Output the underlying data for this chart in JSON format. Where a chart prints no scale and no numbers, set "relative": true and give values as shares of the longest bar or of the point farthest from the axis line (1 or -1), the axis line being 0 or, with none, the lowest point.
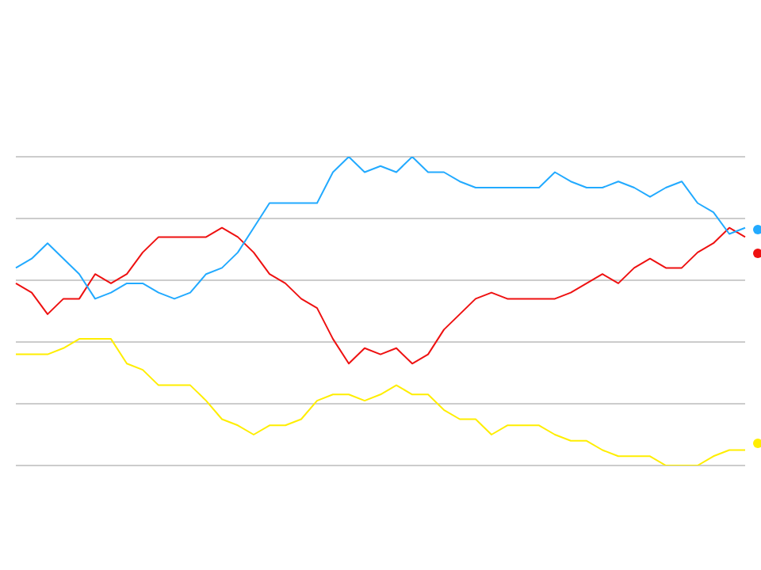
{
  "chart_data": {
    "type": "line",
    "relative": true,
    "grid": "y",
    "legend": false,
    "marker": "none",
    "line_style": "solid",
    "categories": [
      null,
      null,
      null,
      null,
      null,
      null,
      null,
      null,
      null,
      null,
      null,
      null,
      null,
      null,
      null,
      null,
      null,
      null,
      null,
      null,
      null,
      null,
      null,
      null,
      null,
      null,
      null,
      null,
      null,
      null,
      null,
      null,
      null,
      null,
      null,
      null,
      null,
      null,
      null,
      null,
      null,
      null,
      null,
      null,
      null,
      null,
      null
    ],
    "series": [
      {
        "color": "#22aaff",
        "values": [
          0.64,
          0.67,
          0.72,
          0.67,
          0.62,
          0.54,
          0.56,
          0.59,
          0.59,
          0.56,
          0.54,
          0.56,
          0.62,
          0.64,
          0.69,
          0.77,
          0.85,
          0.85,
          0.85,
          0.85,
          0.95,
          1,
          0.95,
          0.97,
          0.95,
          1,
          0.95,
          0.95,
          0.92,
          0.9,
          0.9,
          0.9,
          0.9,
          0.9,
          0.95,
          0.92,
          0.9,
          0.9,
          0.92,
          0.9,
          0.87,
          0.9,
          0.92,
          0.85,
          0.82,
          0.75,
          0.77
        ]
      },
      {
        "color": "#ee1111",
        "values": [
          0.59,
          0.56,
          0.49,
          0.54,
          0.54,
          0.62,
          0.59,
          0.62,
          0.69,
          0.74,
          0.74,
          0.74,
          0.74,
          0.77,
          0.74,
          0.69,
          0.62,
          0.59,
          0.54,
          0.51,
          0.41,
          0.33,
          0.38,
          0.36,
          0.38,
          0.33,
          0.36,
          0.44,
          0.49,
          0.54,
          0.56,
          0.54,
          0.54,
          0.54,
          0.54,
          0.56,
          0.59,
          0.62,
          0.59,
          0.64,
          0.67,
          0.64,
          0.64,
          0.69,
          0.72,
          0.77,
          0.74
        ]
      },
      {
        "color": "#ffee00",
        "values": [
          0.36,
          0.36,
          0.36,
          0.38,
          0.41,
          0.41,
          0.41,
          0.33,
          0.31,
          0.26,
          0.26,
          0.26,
          0.21,
          0.15,
          0.13,
          0.1,
          0.13,
          0.13,
          0.15,
          0.21,
          0.23,
          0.23,
          0.21,
          0.23,
          0.26,
          0.23,
          0.23,
          0.18,
          0.15,
          0.15,
          0.1,
          0.13,
          0.13,
          0.13,
          0.1,
          0.08,
          0.08,
          0.05,
          0.03,
          0.03,
          0.03,
          0,
          0,
          0,
          0.03,
          0.05,
          0.05
        ]
      }
    ]
  }
}
